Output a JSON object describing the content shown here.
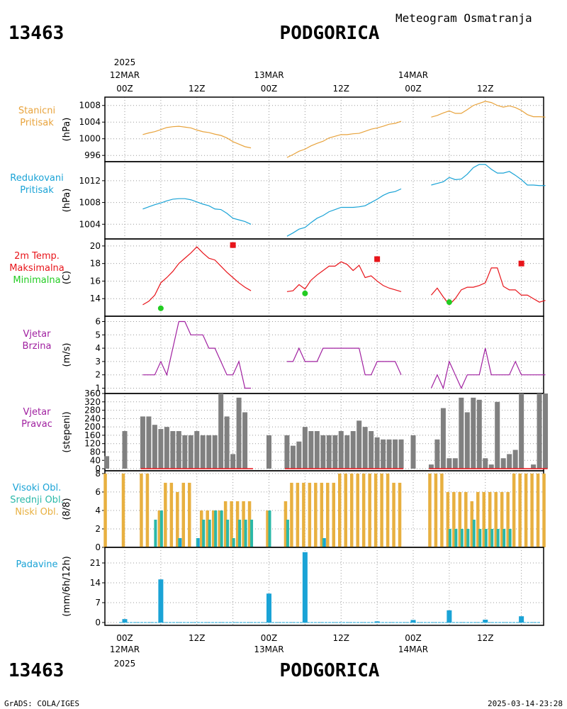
{
  "header": {
    "station_id": "13463",
    "station_name": "PODGORICA",
    "subtitle": "Meteogram Osmatranja"
  },
  "footer": {
    "credit": "GrADS: COLA/IGES",
    "timestamp": "2025-03-14-23:28"
  },
  "time_axis": {
    "top_year": "2025",
    "bottom_year": "2025",
    "dates": [
      "12MAR",
      "13MAR",
      "14MAR"
    ],
    "tick_labels": [
      "00Z",
      "12Z",
      "00Z",
      "12Z",
      "00Z",
      "12Z"
    ],
    "tick_hours": [
      0,
      12,
      24,
      36,
      48,
      60
    ]
  },
  "colors": {
    "pressure": "#e8a33c",
    "reduced": "#1aa3d6",
    "tmax": "#e8141a",
    "tmin": "#22cc22",
    "wind": "#a020a0",
    "direction": "#808080",
    "low_cloud": "#e8b040",
    "mid_cloud": "#2ab8a8",
    "high_cloud": "#1aa3d6",
    "precip": "#1aa3d6"
  },
  "chart_data": [
    {
      "type": "line",
      "panel": "station-pressure",
      "labels": [
        "Stanicni",
        "Pritisak"
      ],
      "ylabel": "(hPa)",
      "ylim": [
        994.5,
        1010
      ],
      "yticks": [
        996,
        1000,
        1004,
        1008
      ],
      "x_unit": "hours since 12MAR 00Z",
      "segments": [
        {
          "x": [
            3,
            4,
            5,
            6,
            7,
            8,
            9,
            10,
            11,
            12,
            13,
            14,
            15,
            16,
            17,
            18,
            19,
            20,
            21
          ],
          "y": [
            1001,
            1001.4,
            1001.7,
            1002.2,
            1002.7,
            1002.9,
            1003,
            1002.8,
            1002.6,
            1002.1,
            1001.7,
            1001.5,
            1001.1,
            1000.8,
            1000.2,
            999.3,
            998.7,
            998.1,
            997.8
          ]
        },
        {
          "x": [
            27,
            28,
            29,
            30,
            31,
            32,
            33,
            34,
            35,
            36,
            37,
            38,
            39,
            40,
            41,
            42,
            43,
            44,
            45,
            46
          ],
          "y": [
            995.5,
            996.2,
            997,
            997.5,
            998.3,
            998.9,
            999.4,
            1000.2,
            1000.6,
            1001,
            1001,
            1001.2,
            1001.3,
            1001.8,
            1002.3,
            1002.6,
            1003,
            1003.5,
            1003.7,
            1004.2
          ]
        },
        {
          "x": [
            51,
            52,
            53,
            54,
            55,
            56,
            57,
            58,
            59,
            60,
            61,
            62,
            63,
            64,
            65,
            66,
            67,
            68,
            69,
            70
          ],
          "y": [
            1005.2,
            1005.6,
            1006.2,
            1006.7,
            1006.1,
            1006.1,
            1007,
            1008,
            1008.5,
            1009,
            1008.7,
            1008,
            1007.6,
            1007.9,
            1007.5,
            1006.8,
            1005.8,
            1005.3,
            1005.3,
            1005.2
          ]
        }
      ]
    },
    {
      "type": "line",
      "panel": "reduced-pressure",
      "labels": [
        "Redukovani",
        "Pritisak"
      ],
      "ylabel": "(hPa)",
      "ylim": [
        1001.3,
        1015.5
      ],
      "yticks": [
        1004,
        1008,
        1012
      ],
      "x_unit": "hours since 12MAR 00Z",
      "segments": [
        {
          "x": [
            3,
            4,
            5,
            6,
            7,
            8,
            9,
            10,
            11,
            12,
            13,
            14,
            15,
            16,
            17,
            18,
            19,
            20,
            21
          ],
          "y": [
            1006.8,
            1007.2,
            1007.6,
            1007.9,
            1008.3,
            1008.6,
            1008.7,
            1008.7,
            1008.5,
            1008.1,
            1007.7,
            1007.4,
            1006.8,
            1006.7,
            1006,
            1005.1,
            1004.8,
            1004.5,
            1004
          ]
        },
        {
          "x": [
            27,
            28,
            29,
            30,
            31,
            32,
            33,
            34,
            35,
            36,
            37,
            38,
            39,
            40,
            41,
            42,
            43,
            44,
            45,
            46
          ],
          "y": [
            1001.8,
            1002.4,
            1003.1,
            1003.4,
            1004.3,
            1005.1,
            1005.6,
            1006.3,
            1006.7,
            1007.1,
            1007.1,
            1007.1,
            1007.2,
            1007.4,
            1008,
            1008.6,
            1009.3,
            1009.8,
            1010,
            1010.5
          ]
        },
        {
          "x": [
            51,
            52,
            53,
            54,
            55,
            56,
            57,
            58,
            59,
            60,
            61,
            62,
            63,
            64,
            65,
            66,
            67,
            68,
            69,
            70
          ],
          "y": [
            1011.2,
            1011.5,
            1011.8,
            1012.6,
            1012.2,
            1012.3,
            1013.2,
            1014.4,
            1015,
            1015,
            1014.1,
            1013.4,
            1013.4,
            1013.7,
            1013,
            1012.2,
            1011.2,
            1011.2,
            1011.1,
            1011.1
          ]
        }
      ]
    },
    {
      "type": "line",
      "panel": "temperature",
      "labels": [
        "2m Temp.",
        "Maksimalna",
        "Minimalna"
      ],
      "ylabel": "(C)",
      "ylim": [
        12,
        20.8
      ],
      "yticks": [
        14,
        16,
        18,
        20
      ],
      "x_unit": "hours since 12MAR 00Z",
      "segments": [
        {
          "x": [
            3,
            4,
            5,
            6,
            7,
            8,
            9,
            10,
            11,
            12,
            13,
            14,
            15,
            16,
            17,
            18,
            19,
            20,
            21
          ],
          "y": [
            13.3,
            13.7,
            14.4,
            15.8,
            16.4,
            17.1,
            18,
            18.6,
            19.2,
            19.9,
            19.2,
            18.6,
            18.4,
            17.7,
            17,
            16.4,
            15.8,
            15.3,
            14.9
          ]
        },
        {
          "x": [
            27,
            28,
            29,
            30,
            31,
            32,
            33,
            34,
            35,
            36,
            37,
            38,
            39,
            40,
            41,
            42,
            43,
            44,
            45,
            46
          ],
          "y": [
            14.8,
            14.9,
            15.6,
            15.1,
            16.1,
            16.7,
            17.2,
            17.7,
            17.7,
            18.2,
            17.9,
            17.2,
            17.8,
            16.4,
            16.6,
            16,
            15.5,
            15.2,
            15,
            14.8
          ]
        },
        {
          "x": [
            51,
            52,
            53,
            54,
            55,
            56,
            57,
            58,
            59,
            60,
            61,
            62,
            63,
            64,
            65,
            66,
            67,
            68,
            69,
            70
          ],
          "y": [
            14.4,
            15.2,
            14.2,
            13.3,
            14,
            15,
            15.3,
            15.3,
            15.5,
            15.8,
            17.5,
            17.5,
            15.4,
            15,
            15,
            14.4,
            14.4,
            14,
            13.6,
            13.8
          ]
        }
      ],
      "tmax": {
        "x": [
          18,
          42,
          66
        ],
        "y": [
          20.1,
          18.5,
          18
        ]
      },
      "tmin": {
        "x": [
          6,
          30,
          54
        ],
        "y": [
          12.9,
          14.6,
          13.6
        ]
      }
    },
    {
      "type": "line",
      "panel": "wind-speed",
      "labels": [
        "Vjetar",
        "Brzina"
      ],
      "ylabel": "(m/s)",
      "ylim": [
        0.6,
        6.4
      ],
      "yticks": [
        1,
        2,
        3,
        4,
        5,
        6
      ],
      "x_unit": "hours since 12MAR 00Z",
      "segments": [
        {
          "x": [
            3,
            4,
            5,
            6,
            7,
            8,
            9,
            10,
            11,
            12,
            13,
            14,
            15,
            16,
            17,
            18,
            19,
            20,
            21
          ],
          "y": [
            2,
            2,
            2,
            3,
            2,
            4,
            6,
            6,
            5,
            5,
            5,
            4,
            4,
            3,
            2,
            2,
            3,
            1,
            1
          ]
        },
        {
          "x": [
            27,
            28,
            29,
            30,
            31,
            32,
            33,
            34,
            35,
            36,
            37,
            38,
            39,
            40,
            41,
            42,
            43,
            44,
            45,
            46
          ],
          "y": [
            3,
            3,
            4,
            3,
            3,
            3,
            4,
            4,
            4,
            4,
            4,
            4,
            4,
            2,
            2,
            3,
            3,
            3,
            3,
            2
          ]
        },
        {
          "x": [
            51,
            52,
            53,
            54,
            55,
            56,
            57,
            58,
            59,
            60,
            61,
            62,
            63,
            64,
            65,
            66,
            67,
            68,
            69,
            70
          ],
          "y": [
            1,
            2,
            1,
            3,
            2,
            1,
            2,
            2,
            2,
            4,
            2,
            2,
            2,
            2,
            3,
            2,
            2,
            2,
            2,
            2
          ]
        }
      ]
    },
    {
      "type": "bar",
      "panel": "wind-direction",
      "labels": [
        "Vjetar",
        "Pravac"
      ],
      "ylabel": "(stepeni)",
      "ylim": [
        -10,
        360
      ],
      "yticks": [
        0,
        40,
        80,
        120,
        160,
        200,
        240,
        280,
        320,
        360
      ],
      "x_unit": "hours since 12MAR 00Z",
      "x": [
        -3,
        0,
        3,
        4,
        5,
        6,
        7,
        8,
        9,
        10,
        11,
        12,
        13,
        14,
        15,
        16,
        17,
        18,
        19,
        20,
        21,
        24,
        27,
        28,
        29,
        30,
        31,
        32,
        33,
        34,
        35,
        36,
        37,
        38,
        39,
        40,
        41,
        42,
        43,
        44,
        45,
        46,
        48,
        51,
        52,
        53,
        54,
        55,
        56,
        57,
        58,
        59,
        60,
        61,
        62,
        63,
        64,
        65,
        66,
        67,
        68,
        69,
        70
      ],
      "values": [
        60,
        180,
        250,
        250,
        210,
        190,
        200,
        180,
        180,
        160,
        160,
        180,
        160,
        160,
        160,
        360,
        250,
        70,
        340,
        270,
        0,
        160,
        160,
        110,
        130,
        200,
        180,
        180,
        160,
        160,
        160,
        180,
        160,
        180,
        230,
        200,
        180,
        150,
        140,
        140,
        140,
        140,
        160,
        20,
        140,
        290,
        50,
        50,
        340,
        270,
        340,
        330,
        50,
        20,
        320,
        50,
        70,
        90,
        360,
        0,
        20,
        360,
        360
      ]
    },
    {
      "type": "bar",
      "panel": "cloud-cover",
      "labels": [
        "Visoki Obl.",
        "Srednji Obl.",
        "Niski Obl."
      ],
      "ylabel": "(8/8)",
      "ylim": [
        0,
        8.3
      ],
      "yticks": [
        0,
        2,
        4,
        6,
        8
      ],
      "x_unit": "hours since 12MAR 00Z",
      "x": [
        -3,
        0,
        3,
        4,
        5,
        6,
        7,
        8,
        9,
        10,
        11,
        12,
        13,
        14,
        15,
        16,
        17,
        18,
        19,
        20,
        21,
        24,
        27,
        28,
        29,
        30,
        31,
        32,
        33,
        34,
        35,
        36,
        37,
        38,
        39,
        40,
        41,
        42,
        43,
        44,
        45,
        46,
        48,
        51,
        52,
        53,
        54,
        55,
        56,
        57,
        58,
        59,
        60,
        61,
        62,
        63,
        64,
        65,
        66,
        67,
        68,
        69,
        70
      ],
      "series": [
        {
          "name": "Niski Obl.",
          "values": [
            8,
            8,
            8,
            8,
            0,
            4,
            7,
            7,
            6,
            7,
            7,
            0,
            4,
            4,
            4,
            4,
            5,
            5,
            5,
            5,
            5,
            4,
            5,
            7,
            7,
            7,
            7,
            7,
            7,
            7,
            7,
            8,
            8,
            8,
            8,
            8,
            8,
            8,
            8,
            8,
            7,
            7,
            0,
            8,
            8,
            8,
            6,
            6,
            6,
            6,
            5,
            6,
            6,
            6,
            6,
            6,
            6,
            8,
            8,
            8,
            8,
            8,
            8
          ]
        },
        {
          "name": "Srednji Obl.",
          "values": [
            0,
            0,
            0,
            0,
            3,
            4,
            0,
            0,
            1,
            0,
            0,
            1,
            3,
            3,
            4,
            4,
            3,
            1,
            3,
            3,
            3,
            4,
            3,
            0,
            0,
            0,
            0,
            0,
            1,
            0,
            0,
            0,
            0,
            0,
            0,
            0,
            0,
            0,
            0,
            0,
            0,
            0,
            0,
            0,
            0,
            0,
            2,
            2,
            2,
            2,
            3,
            2,
            2,
            2,
            2,
            2,
            2,
            0,
            0,
            0,
            0,
            0,
            0
          ]
        },
        {
          "name": "Visoki Obl.",
          "values": [
            0,
            0,
            0,
            0,
            0,
            0,
            0,
            0,
            1,
            0,
            0,
            1,
            0,
            0,
            0,
            0,
            0,
            0,
            0,
            0,
            0,
            0,
            0,
            0,
            0,
            0,
            0,
            0,
            1,
            0,
            0,
            0,
            0,
            0,
            0,
            0,
            0,
            0,
            0,
            0,
            0,
            0,
            0,
            0,
            0,
            0,
            0,
            0,
            0,
            0,
            0,
            0,
            0,
            0,
            0,
            0,
            0,
            0,
            0,
            0,
            0,
            0,
            0
          ]
        }
      ]
    },
    {
      "type": "bar",
      "panel": "precipitation",
      "labels": [
        "Padavine"
      ],
      "ylabel": "(mm/6h/12h)",
      "ylim": [
        -1,
        26.5
      ],
      "yticks": [
        0,
        7,
        14,
        21
      ],
      "x_unit": "hours since 12MAR 00Z",
      "x": [
        0,
        6,
        24,
        30,
        42,
        48,
        54,
        60,
        66
      ],
      "values": [
        1.2,
        15.2,
        10.2,
        24.8,
        0.4,
        0.9,
        4.3,
        1,
        2.2
      ]
    }
  ]
}
